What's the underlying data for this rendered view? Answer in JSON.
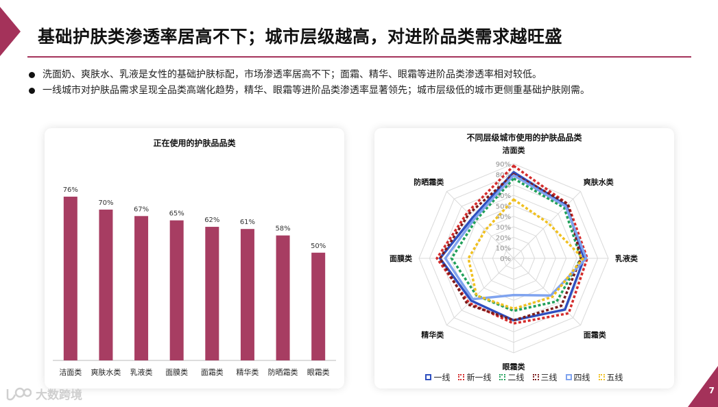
{
  "page": {
    "title": "基础护肤类渗透率居高不下；城市层级越高，对进阶品类需求越旺盛",
    "bullets": [
      "洗面奶、爽肤水、乳液是女性的基础护肤标配，市场渗透率居高不下；面霜、精华、眼霜等进阶品类渗透率相对较低。",
      "一线城市对护肤品需求呈现全品类高端化趋势，精华、眼霜等进阶品类渗透率显著领先；城市层级低的城市更侧重基础护肤刚需。"
    ],
    "page_number": "7",
    "watermark": "大数跨境",
    "accent_color": "#a4325a"
  },
  "chart_data": [
    {
      "type": "bar",
      "title": "正在使用的护肤品品类",
      "categories": [
        "洁面类",
        "爽肤水类",
        "乳液类",
        "面膜类",
        "面霜类",
        "精华类",
        "防晒霜类",
        "眼霜类"
      ],
      "values": [
        76,
        70,
        67,
        65,
        62,
        61,
        58,
        50
      ],
      "value_labels": [
        "76%",
        "70%",
        "67%",
        "65%",
        "62%",
        "61%",
        "58%",
        "50%"
      ],
      "ylim": [
        0,
        90
      ],
      "color": "#a73d62"
    },
    {
      "type": "radar",
      "title": "不同层级城市使用的护肤品品类",
      "axes": [
        "洁面类",
        "爽肤水类",
        "乳液类",
        "面霜类",
        "眼霜类",
        "精华类",
        "面膜类",
        "防晒霜类"
      ],
      "ticks": [
        "0%",
        "10%",
        "20%",
        "30%",
        "40%",
        "50%",
        "60%",
        "70%",
        "80%",
        "90%"
      ],
      "rmax": 90,
      "series": [
        {
          "name": "一线",
          "color": "#2e4fbf",
          "dash": "solid",
          "values": [
            82,
            71,
            67,
            69,
            59,
            57,
            70,
            55
          ]
        },
        {
          "name": "新一线",
          "color": "#d42b2b",
          "dash": "dotted",
          "values": [
            88,
            73,
            70,
            74,
            62,
            60,
            73,
            62
          ]
        },
        {
          "name": "二线",
          "color": "#21a05a",
          "dash": "dotted",
          "values": [
            76,
            68,
            64,
            58,
            50,
            50,
            59,
            51
          ]
        },
        {
          "name": "三线",
          "color": "#7b1c1c",
          "dash": "dotted",
          "values": [
            80,
            73,
            64,
            64,
            59,
            62,
            70,
            60
          ]
        },
        {
          "name": "四线",
          "color": "#7fa3ef",
          "dash": "solid",
          "values": [
            79,
            70,
            69,
            50,
            35,
            55,
            65,
            53
          ]
        },
        {
          "name": "五线",
          "color": "#f0c020",
          "dash": "dotted",
          "values": [
            56,
            47,
            66,
            52,
            48,
            50,
            43,
            38
          ]
        }
      ]
    }
  ]
}
